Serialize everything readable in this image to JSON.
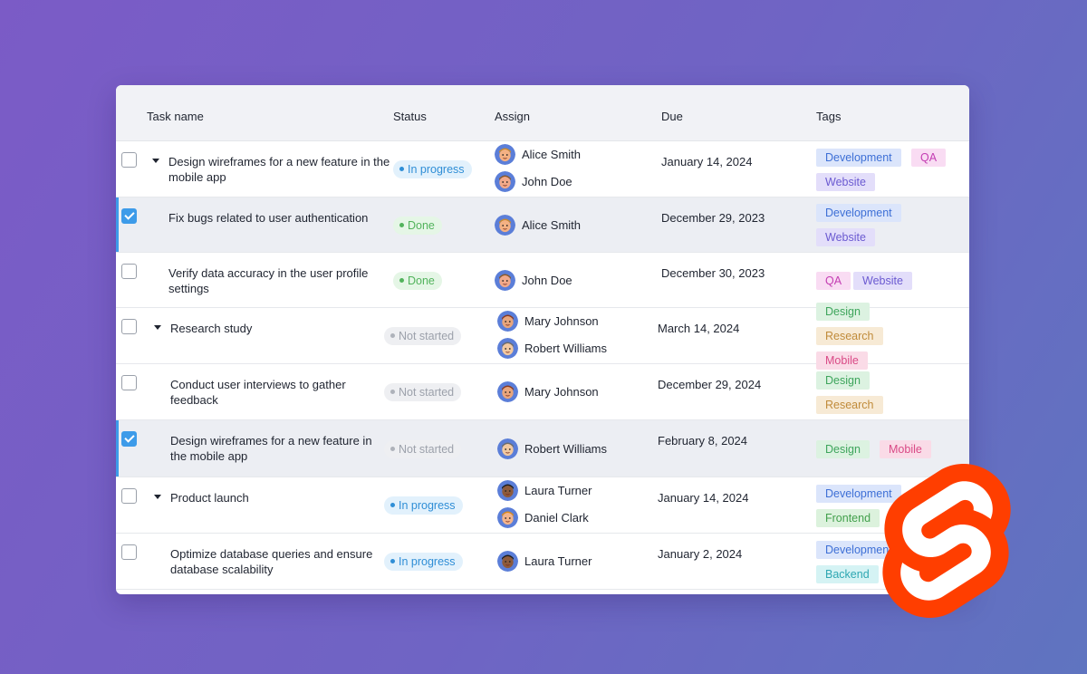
{
  "columns": {
    "task": "Task name",
    "status": "Status",
    "assign": "Assign",
    "due": "Due",
    "tags": "Tags"
  },
  "rows": [
    {
      "task": [
        "Design wireframes for a new feature in the",
        "mobile app"
      ],
      "checked": false,
      "expandable": true,
      "status": "In progress",
      "assignees": [
        "Alice Smith",
        "John Doe"
      ],
      "due": "January 14, 2024",
      "tags": [
        "Development",
        "QA",
        "Website"
      ]
    },
    {
      "task": [
        "Fix bugs related to user authentication"
      ],
      "checked": true,
      "expandable": false,
      "status": "Done",
      "assignees": [
        "Alice Smith"
      ],
      "due": "December 29, 2023",
      "tags": [
        "Development",
        "Website"
      ]
    },
    {
      "task": [
        "Verify data accuracy in the user profile",
        "settings"
      ],
      "checked": false,
      "expandable": false,
      "status": "Done",
      "assignees": [
        "John Doe"
      ],
      "due": "December 30, 2023",
      "tags": [
        "QA",
        "Website"
      ]
    },
    {
      "task": [
        "Research study"
      ],
      "checked": false,
      "expandable": true,
      "status": "Not started",
      "assignees": [
        "Mary Johnson",
        "Robert Williams"
      ],
      "due": "March 14, 2024",
      "tags": [
        "Design",
        "Research",
        "Mobile"
      ]
    },
    {
      "task": [
        "Conduct user interviews to gather",
        "feedback"
      ],
      "checked": false,
      "expandable": false,
      "status": "Not started",
      "assignees": [
        "Mary Johnson"
      ],
      "due": "December 29, 2024",
      "tags": [
        "Design",
        "Research"
      ]
    },
    {
      "task": [
        "Design wireframes for a new feature in",
        "the mobile app"
      ],
      "checked": true,
      "expandable": false,
      "status": "Not started",
      "assignees": [
        "Robert Williams"
      ],
      "due": "February 8, 2024",
      "tags": [
        "Design",
        "Mobile"
      ]
    },
    {
      "task": [
        "Product launch"
      ],
      "checked": false,
      "expandable": true,
      "status": "In progress",
      "assignees": [
        "Laura Turner",
        "Daniel Clark"
      ],
      "due": "January 14, 2024",
      "tags": [
        "Development",
        "Frontend"
      ]
    },
    {
      "task": [
        "Optimize database queries and ensure",
        "database scalability"
      ],
      "checked": false,
      "expandable": false,
      "status": "In progress",
      "assignees": [
        "Laura Turner"
      ],
      "due": "January 2, 2024",
      "tags": [
        "Development",
        "Backend"
      ]
    }
  ],
  "logo": {
    "name": "svelte-logo",
    "color": "#ff3e00"
  }
}
